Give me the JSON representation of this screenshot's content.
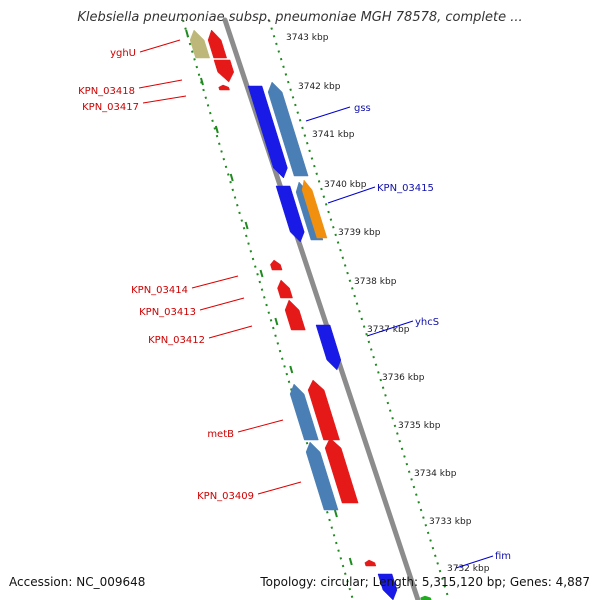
{
  "title": "Klebsiella pneumoniae subsp. pneumoniae MGH 78578, complete ...",
  "accession_text": "Accession: NC_009648",
  "summary_text": "Topology: circular; Length: 5,315,120 bp; Genes: 4,887",
  "colors": {
    "backbone": "#8c8c8c",
    "ruler_dots": "#1f8a1f",
    "forward_gene": "#e61919",
    "reverse_gene": "#1a1ae6",
    "cds_steel": "#4a7fb5",
    "cds_orange": "#f0900e",
    "cds_olive": "#bdb77a",
    "label_red": "#cc0000",
    "label_blue": "#1010aa",
    "leader_red": "#dd0000",
    "leader_blue": "#0000cc"
  },
  "ruler": {
    "unit": "kbp",
    "ticks": [
      "3743 kbp",
      "3742 kbp",
      "3741 kbp",
      "3740 kbp",
      "3739 kbp",
      "3738 kbp",
      "3737 kbp",
      "3736 kbp",
      "3735 kbp",
      "3734 kbp",
      "3733 kbp",
      "3732 kbp"
    ]
  },
  "gene_labels": {
    "left": [
      "yghU",
      "KPN_03418",
      "KPN_03417",
      "KPN_03414",
      "KPN_03413",
      "KPN_03412",
      "metB",
      "KPN_03409"
    ],
    "right": [
      "gss",
      "KPN_03415",
      "yhcS",
      "fim"
    ]
  }
}
